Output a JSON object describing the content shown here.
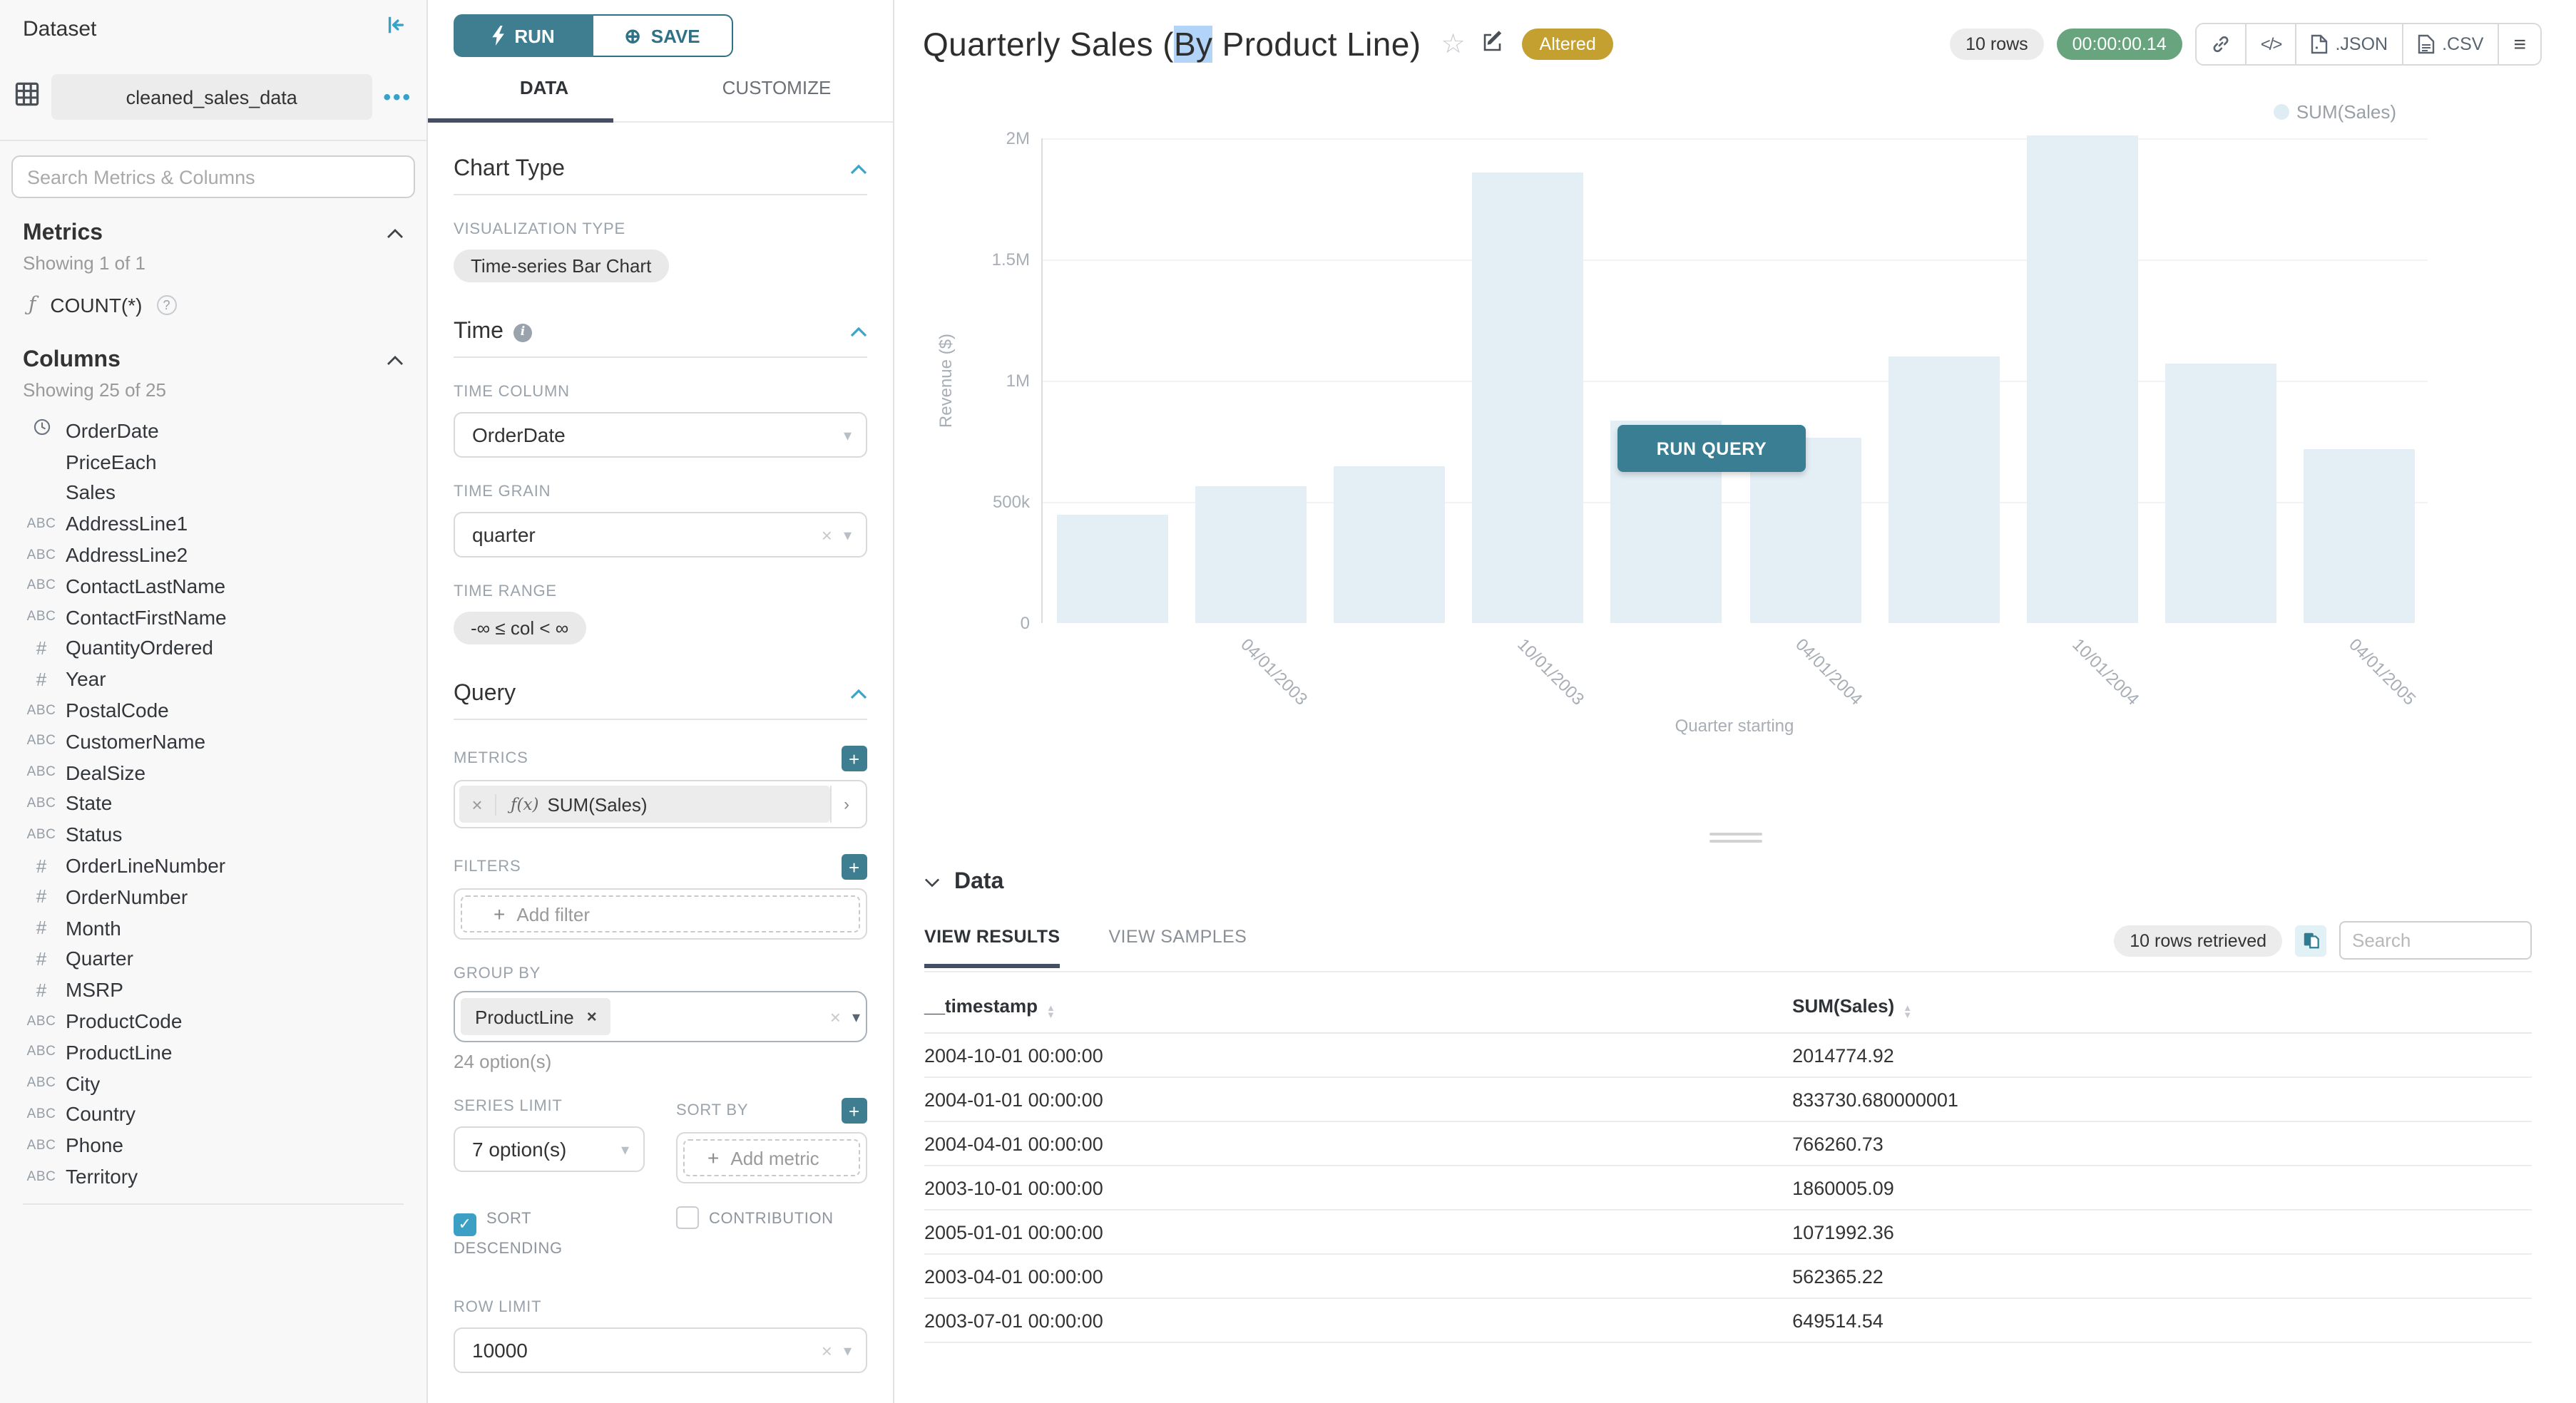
{
  "icons": {
    "ellipsis": "•••",
    "caret_down": "▾",
    "clear_x": "×",
    "check": "✓",
    "hamburger": "≡",
    "code": "</>",
    "help": "?",
    "plus": "+",
    "chip_arrow": "›",
    "star": "☆",
    "info": "i",
    "metric_fx": "ƒ(x)",
    "sidebar_fx": "ƒ"
  },
  "dataset_panel": {
    "title": "Dataset",
    "dataset_name": "cleaned_sales_data",
    "search_placeholder": "Search Metrics & Columns",
    "metrics": {
      "heading": "Metrics",
      "showing": "Showing 1 of 1",
      "items": [
        {
          "icon": "function-icon",
          "name": "COUNT(*)"
        }
      ]
    },
    "columns": {
      "heading": "Columns",
      "showing": "Showing 25 of 25",
      "items": [
        {
          "type": "time",
          "name": "OrderDate"
        },
        {
          "type": "none",
          "name": "PriceEach"
        },
        {
          "type": "none",
          "name": "Sales"
        },
        {
          "type": "str",
          "name": "AddressLine1"
        },
        {
          "type": "str",
          "name": "AddressLine2"
        },
        {
          "type": "str",
          "name": "ContactLastName"
        },
        {
          "type": "str",
          "name": "ContactFirstName"
        },
        {
          "type": "num",
          "name": "QuantityOrdered"
        },
        {
          "type": "num",
          "name": "Year"
        },
        {
          "type": "str",
          "name": "PostalCode"
        },
        {
          "type": "str",
          "name": "CustomerName"
        },
        {
          "type": "str",
          "name": "DealSize"
        },
        {
          "type": "str",
          "name": "State"
        },
        {
          "type": "str",
          "name": "Status"
        },
        {
          "type": "num",
          "name": "OrderLineNumber"
        },
        {
          "type": "num",
          "name": "OrderNumber"
        },
        {
          "type": "num",
          "name": "Month"
        },
        {
          "type": "num",
          "name": "Quarter"
        },
        {
          "type": "num",
          "name": "MSRP"
        },
        {
          "type": "str",
          "name": "ProductCode"
        },
        {
          "type": "str",
          "name": "ProductLine"
        },
        {
          "type": "str",
          "name": "City"
        },
        {
          "type": "str",
          "name": "Country"
        },
        {
          "type": "str",
          "name": "Phone"
        },
        {
          "type": "str",
          "name": "Territory"
        }
      ]
    }
  },
  "control_panel": {
    "run_label": "RUN",
    "save_label": "SAVE",
    "tabs": [
      "DATA",
      "CUSTOMIZE"
    ],
    "chart_type": {
      "heading": "Chart Type",
      "viz_label": "VISUALIZATION TYPE",
      "value": "Time-series Bar Chart"
    },
    "time": {
      "heading": "Time",
      "column_label": "TIME COLUMN",
      "column_value": "OrderDate",
      "grain_label": "TIME GRAIN",
      "grain_value": "quarter",
      "range_label": "TIME RANGE",
      "range_value": "-∞ ≤ col < ∞"
    },
    "query": {
      "heading": "Query",
      "metrics_label": "METRICS",
      "metric_value": "SUM(Sales)",
      "filters_label": "FILTERS",
      "add_filter_label": "Add filter",
      "group_by_label": "GROUP BY",
      "group_by_value": "ProductLine",
      "options_hint": "24 option(s)",
      "series_limit_label": "SERIES LIMIT",
      "series_limit_value": "7 option(s)",
      "sort_by_label": "SORT BY",
      "add_metric_label": "Add metric",
      "sort_descending_label": "SORT DESCENDING",
      "contribution_label": "CONTRIBUTION",
      "row_limit_label": "ROW LIMIT",
      "row_limit_value": "10000"
    }
  },
  "header": {
    "title": "Quarterly Sales (By Product Line)",
    "title_pre": "Quarterly Sales (",
    "title_selected": "By",
    "title_post": " Product Line)",
    "altered_badge": "Altered",
    "rows_badge": "10 rows",
    "timer": "00:00:00.14",
    "export_json_label": ".JSON",
    "export_csv_label": ".CSV"
  },
  "chart_runtime": {
    "run_query_label": "RUN QUERY"
  },
  "chart_data": {
    "type": "bar",
    "title": "Quarterly Sales (By Product Line)",
    "legend": [
      "SUM(Sales)"
    ],
    "legend_position": "top-right",
    "grid": true,
    "xlabel": "Quarter starting",
    "ylabel": "Revenue ($)",
    "ylim": [
      0,
      2000000
    ],
    "yticks": [
      {
        "label": "0",
        "value": 0
      },
      {
        "label": "500k",
        "value": 500000
      },
      {
        "label": "1M",
        "value": 1000000
      },
      {
        "label": "1.5M",
        "value": 1500000
      },
      {
        "label": "2M",
        "value": 2000000
      }
    ],
    "x": [
      "2003-01-01",
      "2003-04-01",
      "2003-07-01",
      "2003-10-01",
      "2004-01-01",
      "2004-04-01",
      "2004-07-01",
      "2004-10-01",
      "2005-01-01",
      "2005-04-01"
    ],
    "x_ticks_shown": [
      {
        "index": 1,
        "label": "04/01/2003"
      },
      {
        "index": 3,
        "label": "10/01/2003"
      },
      {
        "index": 5,
        "label": "04/01/2004"
      },
      {
        "index": 7,
        "label": "10/01/2004"
      },
      {
        "index": 9,
        "label": "04/01/2005"
      }
    ],
    "series": [
      {
        "name": "SUM(Sales)",
        "values": [
          445000,
          562365.22,
          649514.54,
          1860005.09,
          833730.68,
          766260.73,
          1101000,
          2014774.92,
          1071992.36,
          720000
        ]
      }
    ],
    "bar_color": "#e3eef5"
  },
  "data_panel": {
    "heading": "Data",
    "tabs": [
      "VIEW RESULTS",
      "VIEW SAMPLES"
    ],
    "rows_retrieved": "10 rows retrieved",
    "search_placeholder": "Search",
    "table": {
      "columns": [
        "__timestamp",
        "SUM(Sales)"
      ],
      "rows": [
        [
          "2004-10-01 00:00:00",
          "2014774.92"
        ],
        [
          "2004-01-01 00:00:00",
          "833730.680000001"
        ],
        [
          "2004-04-01 00:00:00",
          "766260.73"
        ],
        [
          "2003-10-01 00:00:00",
          "1860005.09"
        ],
        [
          "2005-01-01 00:00:00",
          "1071992.36"
        ],
        [
          "2003-04-01 00:00:00",
          "562365.22"
        ],
        [
          "2003-07-01 00:00:00",
          "649514.54"
        ]
      ]
    }
  }
}
